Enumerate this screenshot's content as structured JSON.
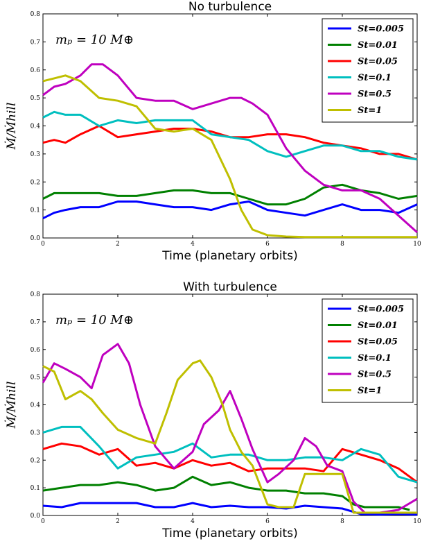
{
  "chart_data": [
    {
      "type": "line",
      "title": "No turbulence",
      "xlabel": "Time (planetary orbits)",
      "ylabel": "Ṁ/Ṁhill",
      "annotation": "mₚ = 10 M⊕",
      "xlim": [
        0,
        10
      ],
      "ylim": [
        0,
        0.8
      ],
      "x_ticks": [
        "0",
        "2",
        "4",
        "6",
        "8",
        "10"
      ],
      "y_ticks": [
        "0.0",
        "0.1",
        "0.2",
        "0.3",
        "0.4",
        "0.5",
        "0.6",
        "0.7",
        "0.8"
      ],
      "legend": "top-right",
      "series": [
        {
          "name": "St=0.005",
          "color": "#0000ff",
          "x": [
            0,
            0.3,
            0.6,
            1,
            1.5,
            2,
            2.5,
            3,
            3.5,
            4,
            4.5,
            5,
            5.5,
            6,
            6.5,
            7,
            7.5,
            8,
            8.5,
            9,
            9.5,
            10
          ],
          "y": [
            0.07,
            0.09,
            0.1,
            0.11,
            0.11,
            0.13,
            0.13,
            0.12,
            0.11,
            0.11,
            0.1,
            0.12,
            0.13,
            0.1,
            0.09,
            0.08,
            0.1,
            0.12,
            0.1,
            0.1,
            0.09,
            0.12
          ]
        },
        {
          "name": "St=0.01",
          "color": "#008000",
          "x": [
            0,
            0.3,
            0.6,
            1,
            1.5,
            2,
            2.5,
            3,
            3.5,
            4,
            4.5,
            5,
            5.5,
            6,
            6.5,
            7,
            7.5,
            8,
            8.5,
            9,
            9.5,
            10
          ],
          "y": [
            0.14,
            0.16,
            0.16,
            0.16,
            0.16,
            0.15,
            0.15,
            0.16,
            0.17,
            0.17,
            0.16,
            0.16,
            0.14,
            0.12,
            0.12,
            0.14,
            0.18,
            0.19,
            0.17,
            0.16,
            0.14,
            0.15
          ]
        },
        {
          "name": "St=0.05",
          "color": "#ff0000",
          "x": [
            0,
            0.3,
            0.6,
            1,
            1.5,
            2,
            2.5,
            3,
            3.5,
            4,
            4.5,
            5,
            5.5,
            6,
            6.5,
            7,
            7.5,
            8,
            8.5,
            9,
            9.5,
            10
          ],
          "y": [
            0.34,
            0.35,
            0.34,
            0.37,
            0.4,
            0.36,
            0.37,
            0.38,
            0.39,
            0.39,
            0.38,
            0.36,
            0.36,
            0.37,
            0.37,
            0.36,
            0.34,
            0.33,
            0.32,
            0.3,
            0.3,
            0.28
          ]
        },
        {
          "name": "St=0.1",
          "color": "#00bfbf",
          "x": [
            0,
            0.3,
            0.6,
            1,
            1.5,
            2,
            2.5,
            3,
            3.5,
            4,
            4.5,
            5,
            5.5,
            6,
            6.5,
            7,
            7.5,
            8,
            8.5,
            9,
            9.5,
            10
          ],
          "y": [
            0.43,
            0.45,
            0.44,
            0.44,
            0.4,
            0.42,
            0.41,
            0.42,
            0.42,
            0.42,
            0.37,
            0.36,
            0.35,
            0.31,
            0.29,
            0.31,
            0.33,
            0.33,
            0.31,
            0.31,
            0.29,
            0.28
          ]
        },
        {
          "name": "St=0.5",
          "color": "#bf00bf",
          "x": [
            0,
            0.3,
            0.6,
            1,
            1.3,
            1.6,
            2,
            2.5,
            3,
            3.5,
            4,
            4.5,
            5,
            5.3,
            5.6,
            6,
            6.5,
            7,
            7.5,
            8,
            8.5,
            9,
            9.5,
            10
          ],
          "y": [
            0.51,
            0.54,
            0.55,
            0.58,
            0.62,
            0.62,
            0.58,
            0.5,
            0.49,
            0.49,
            0.46,
            0.48,
            0.5,
            0.5,
            0.48,
            0.44,
            0.32,
            0.24,
            0.19,
            0.17,
            0.17,
            0.14,
            0.08,
            0.02
          ]
        },
        {
          "name": "St=1",
          "color": "#bfbf00",
          "x": [
            0,
            0.3,
            0.6,
            1,
            1.5,
            2,
            2.5,
            3,
            3.5,
            4,
            4.5,
            5,
            5.3,
            5.6,
            6,
            6.5,
            7,
            7.5,
            8,
            8.5,
            9,
            9.5,
            10
          ],
          "y": [
            0.56,
            0.57,
            0.58,
            0.56,
            0.5,
            0.49,
            0.47,
            0.39,
            0.38,
            0.39,
            0.35,
            0.21,
            0.1,
            0.03,
            0.01,
            0.005,
            0.003,
            0.003,
            0.003,
            0.003,
            0.003,
            0.003,
            0.003
          ]
        }
      ]
    },
    {
      "type": "line",
      "title": "With turbulence",
      "xlabel": "Time (planetary orbits)",
      "ylabel": "Ṁ/Ṁhill",
      "annotation": "mₚ = 10 M⊕",
      "xlim": [
        0,
        10
      ],
      "ylim": [
        0,
        0.8
      ],
      "x_ticks": [
        "0",
        "2",
        "4",
        "6",
        "8",
        "10"
      ],
      "y_ticks": [
        "0.0",
        "0.1",
        "0.2",
        "0.3",
        "0.4",
        "0.5",
        "0.6",
        "0.7",
        "0.8"
      ],
      "legend": "top-right",
      "series": [
        {
          "name": "St=0.005",
          "color": "#0000ff",
          "x": [
            0,
            0.5,
            1,
            1.5,
            2,
            2.5,
            3,
            3.5,
            4,
            4.5,
            5,
            5.5,
            6,
            6.5,
            7,
            7.5,
            8,
            8.5,
            9,
            9.5,
            10
          ],
          "y": [
            0.035,
            0.03,
            0.045,
            0.045,
            0.045,
            0.045,
            0.03,
            0.03,
            0.045,
            0.03,
            0.035,
            0.03,
            0.03,
            0.025,
            0.035,
            0.03,
            0.025,
            0.005,
            0.003,
            0.005,
            0.003
          ]
        },
        {
          "name": "St=0.01",
          "color": "#008000",
          "x": [
            0,
            0.5,
            1,
            1.5,
            2,
            2.5,
            3,
            3.5,
            4,
            4.5,
            5,
            5.5,
            6,
            6.5,
            7,
            7.5,
            8,
            8.3,
            8.6,
            9,
            9.5,
            9.8
          ],
          "y": [
            0.09,
            0.1,
            0.11,
            0.11,
            0.12,
            0.11,
            0.09,
            0.1,
            0.14,
            0.11,
            0.12,
            0.1,
            0.09,
            0.09,
            0.08,
            0.08,
            0.07,
            0.04,
            0.03,
            0.03,
            0.03,
            0.02
          ]
        },
        {
          "name": "St=0.05",
          "color": "#ff0000",
          "x": [
            0,
            0.5,
            1,
            1.5,
            2,
            2.5,
            3,
            3.5,
            4,
            4.5,
            5,
            5.5,
            6,
            6.5,
            7,
            7.5,
            8,
            8.5,
            9,
            9.5,
            10
          ],
          "y": [
            0.24,
            0.26,
            0.25,
            0.22,
            0.24,
            0.18,
            0.19,
            0.17,
            0.2,
            0.18,
            0.19,
            0.16,
            0.17,
            0.17,
            0.17,
            0.16,
            0.24,
            0.22,
            0.2,
            0.17,
            0.12
          ]
        },
        {
          "name": "St=0.1",
          "color": "#00bfbf",
          "x": [
            0,
            0.5,
            1,
            1.5,
            2,
            2.5,
            3,
            3.5,
            4,
            4.5,
            5,
            5.5,
            6,
            6.5,
            7,
            7.5,
            8,
            8.5,
            9,
            9.5,
            10
          ],
          "y": [
            0.3,
            0.32,
            0.32,
            0.25,
            0.17,
            0.21,
            0.22,
            0.23,
            0.26,
            0.21,
            0.22,
            0.22,
            0.2,
            0.2,
            0.21,
            0.21,
            0.2,
            0.24,
            0.22,
            0.14,
            0.12
          ]
        },
        {
          "name": "St=0.5",
          "color": "#bf00bf",
          "x": [
            0,
            0.3,
            0.6,
            1,
            1.3,
            1.6,
            2,
            2.3,
            2.6,
            3,
            3.5,
            4,
            4.3,
            4.7,
            5,
            5.3,
            5.6,
            6,
            6.3,
            6.7,
            7,
            7.3,
            7.6,
            8,
            8.3,
            8.6,
            9,
            9.5,
            10
          ],
          "y": [
            0.48,
            0.55,
            0.53,
            0.5,
            0.46,
            0.58,
            0.62,
            0.55,
            0.4,
            0.25,
            0.17,
            0.23,
            0.33,
            0.38,
            0.45,
            0.35,
            0.24,
            0.12,
            0.15,
            0.2,
            0.28,
            0.25,
            0.18,
            0.16,
            0.05,
            0.01,
            0.01,
            0.02,
            0.06
          ]
        },
        {
          "name": "St=1",
          "color": "#bfbf00",
          "x": [
            0,
            0.3,
            0.6,
            1,
            1.3,
            1.6,
            2,
            2.5,
            3,
            3.3,
            3.6,
            4,
            4.2,
            4.5,
            4.8,
            5,
            5.3,
            5.6,
            6,
            6.3,
            6.7,
            7,
            7.3,
            7.6,
            8,
            8.3,
            8.6,
            9,
            9.5,
            10
          ],
          "y": [
            0.54,
            0.52,
            0.42,
            0.45,
            0.42,
            0.37,
            0.31,
            0.28,
            0.26,
            0.37,
            0.49,
            0.55,
            0.56,
            0.5,
            0.4,
            0.31,
            0.23,
            0.18,
            0.04,
            0.03,
            0.03,
            0.15,
            0.15,
            0.15,
            0.15,
            0.01,
            0.01,
            0.01,
            0.01,
            0.01
          ]
        }
      ]
    }
  ]
}
